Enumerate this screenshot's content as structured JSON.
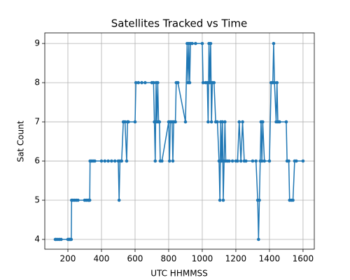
{
  "chart_data": {
    "type": "line",
    "title": "Satellites Tracked vs Time",
    "x_label": "UTC HHMMSS",
    "y_label": "Sat Count",
    "x": [
      125,
      130,
      140,
      150,
      160,
      200,
      205,
      210,
      215,
      220,
      222,
      230,
      240,
      250,
      260,
      300,
      310,
      320,
      325,
      330,
      332,
      340,
      350,
      360,
      400,
      420,
      440,
      460,
      480,
      500,
      505,
      510,
      520,
      530,
      540,
      550,
      555,
      560,
      600,
      605,
      620,
      640,
      660,
      700,
      710,
      715,
      720,
      725,
      730,
      735,
      740,
      745,
      750,
      760,
      800,
      805,
      810,
      820,
      825,
      830,
      840,
      845,
      855,
      900,
      910,
      915,
      920,
      925,
      930,
      940,
      960,
      1000,
      1005,
      1020,
      1030,
      1035,
      1040,
      1045,
      1050,
      1055,
      1060,
      1070,
      1080,
      1090,
      1100,
      1105,
      1110,
      1115,
      1120,
      1125,
      1130,
      1135,
      1140,
      1150,
      1160,
      1180,
      1200,
      1210,
      1220,
      1230,
      1240,
      1250,
      1260,
      1300,
      1320,
      1330,
      1335,
      1340,
      1345,
      1350,
      1355,
      1360,
      1370,
      1400,
      1410,
      1420,
      1425,
      1430,
      1440,
      1445,
      1450,
      1460,
      1500,
      1505,
      1515,
      1520,
      1530,
      1540,
      1550,
      1560,
      1600
    ],
    "series": [
      {
        "name": "Sat Count",
        "color": "#1f77b4",
        "values": [
          4,
          4,
          4,
          4,
          4,
          4,
          4,
          4,
          4,
          4,
          5,
          5,
          5,
          5,
          5,
          5,
          5,
          5,
          5,
          5,
          6,
          6,
          6,
          6,
          6,
          6,
          6,
          6,
          6,
          6,
          5,
          6,
          6,
          7,
          7,
          6,
          7,
          7,
          7,
          8,
          8,
          8,
          8,
          8,
          8,
          7,
          6,
          8,
          7,
          8,
          7,
          7,
          6,
          6,
          7,
          6,
          7,
          7,
          6,
          7,
          7,
          8,
          8,
          7,
          9,
          8,
          9,
          8,
          9,
          9,
          9,
          9,
          8,
          8,
          8,
          7,
          9,
          8,
          9,
          7,
          8,
          8,
          7,
          7,
          6,
          5,
          7,
          6,
          7,
          5,
          6,
          7,
          6,
          6,
          6,
          6,
          6,
          6,
          7,
          6,
          7,
          6,
          6,
          6,
          6,
          5,
          4,
          5,
          6,
          7,
          6,
          7,
          6,
          6,
          8,
          8,
          9,
          8,
          7,
          8,
          7,
          7,
          7,
          6,
          6,
          5,
          5,
          5,
          6,
          6,
          6
        ]
      }
    ],
    "xlim": [
      62.5,
      1667
    ],
    "xticks": [
      200,
      400,
      600,
      800,
      1000,
      1200,
      1400,
      1600
    ],
    "ylim": [
      3.75,
      9.27
    ],
    "yticks": [
      4,
      5,
      6,
      7,
      8,
      9
    ],
    "grid": true
  }
}
